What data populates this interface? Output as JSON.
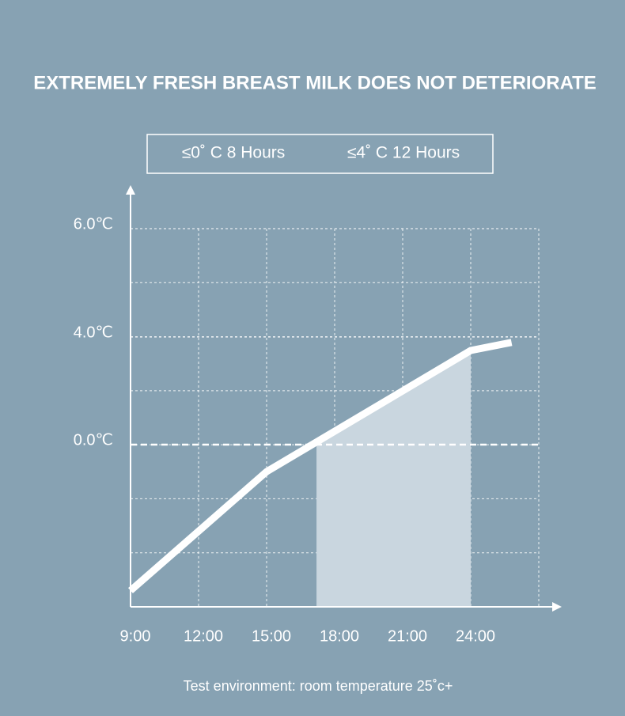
{
  "chart_data": {
    "type": "line",
    "title": "EXTREMELY FRESH BREAST MILK DOES NOT DETERIORATE",
    "notes": [
      "≤0˚ C 8 Hours",
      "≤4˚ C 12 Hours"
    ],
    "footnote": "Test environment: room temperature 25˚c+",
    "x": [
      9,
      15,
      24,
      25.8
    ],
    "series": [
      {
        "color": "#ffffff",
        "values": [
          -5.4,
          -1.0,
          3.5,
          3.8
        ]
      }
    ],
    "shaded_range": [
      17.2,
      24
    ],
    "xlim": [
      9,
      27
    ],
    "xticks": [
      {
        "value": 9,
        "label": "9:00"
      },
      {
        "value": 12,
        "label": "12:00"
      },
      {
        "value": 15,
        "label": "15:00"
      },
      {
        "value": 18,
        "label": "18:00"
      },
      {
        "value": 21,
        "label": "21:00"
      },
      {
        "value": 24,
        "label": "24:00"
      }
    ],
    "ylim": [
      -6,
      6
    ],
    "yticks": [
      {
        "value": 0,
        "label": "0.0℃"
      },
      {
        "value": 4,
        "label": "4.0℃"
      },
      {
        "value": 6,
        "label": "6.0℃"
      }
    ],
    "grid": true
  }
}
